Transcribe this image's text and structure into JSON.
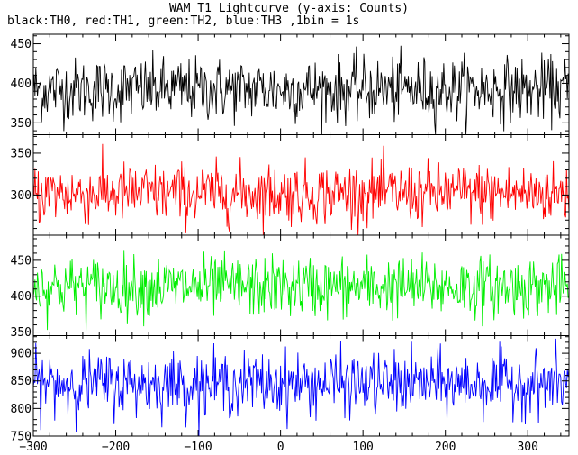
{
  "chart_data": {
    "type": "line",
    "title": "WAM T1 Lightcurve (y-axis: Counts)",
    "subtitle": "black:TH0, red:TH1, green:TH2, blue:TH3 ,1bin = 1s",
    "xlabel": "",
    "ylabel": "",
    "xlim": [
      -300,
      350
    ],
    "x_ticks": [
      -300,
      -200,
      -100,
      0,
      100,
      200,
      300
    ],
    "x_tick_labels": [
      "−300",
      "−200",
      "−100",
      "0",
      "100",
      "200",
      "300"
    ],
    "bin_seconds": 1,
    "panels": [
      {
        "name": "TH0",
        "color": "#000000",
        "ylim": [
          335,
          462
        ],
        "y_ticks": [
          350,
          400,
          450
        ],
        "y_tick_labels": [
          "350",
          "400",
          "450"
        ],
        "mean": 392,
        "sigma": 20
      },
      {
        "name": "TH1",
        "color": "#ff0000",
        "ylim": [
          252,
          372
        ],
        "y_ticks": [
          300,
          350
        ],
        "y_tick_labels": [
          "300",
          "350"
        ],
        "mean": 302,
        "sigma": 18
      },
      {
        "name": "TH2",
        "color": "#00ee00",
        "ylim": [
          345,
          485
        ],
        "y_ticks": [
          350,
          400,
          450
        ],
        "y_tick_labels": [
          "350",
          "400",
          "450"
        ],
        "mean": 413,
        "sigma": 21
      },
      {
        "name": "TH3",
        "color": "#0000ff",
        "ylim": [
          750,
          932
        ],
        "y_ticks": [
          750,
          800,
          850,
          900
        ],
        "y_tick_labels": [
          "750",
          "800",
          "850",
          "900"
        ],
        "mean": 845,
        "sigma": 28
      }
    ]
  }
}
